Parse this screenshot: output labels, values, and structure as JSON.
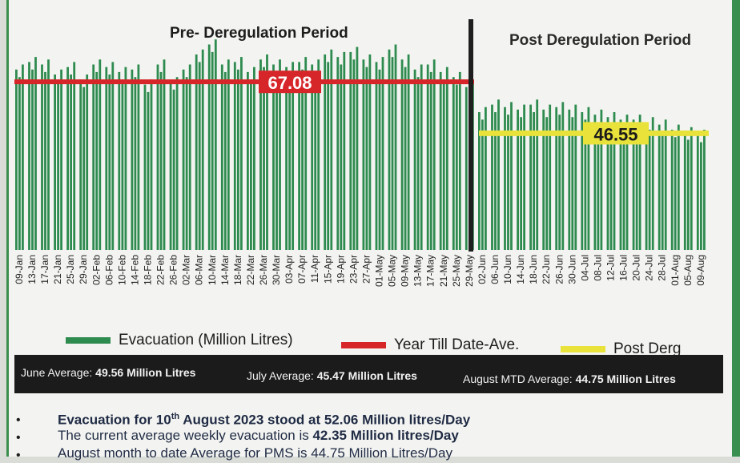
{
  "headings": {
    "pre": "Pre- Deregulation Period",
    "post": "Post Deregulation Period"
  },
  "chart_data": {
    "type": "bar",
    "categories": [
      "09-Jan",
      "13-Jan",
      "17-Jan",
      "21-Jan",
      "25-Jan",
      "29-Jan",
      "02-Feb",
      "06-Feb",
      "10-Feb",
      "14-Feb",
      "18-Feb",
      "22-Feb",
      "26-Feb",
      "02-Mar",
      "06-Mar",
      "10-Mar",
      "14-Mar",
      "18-Mar",
      "22-Mar",
      "26-Mar",
      "30-Mar",
      "03-Apr",
      "07-Apr",
      "11-Apr",
      "15-Apr",
      "19-Apr",
      "23-Apr",
      "27-Apr",
      "01-May",
      "05-May",
      "09-May",
      "13-May",
      "17-May",
      "21-May",
      "25-May",
      "29-May",
      "02-Jun",
      "06-Jun",
      "10-Jun",
      "14-Jun",
      "18-Jun",
      "22-Jun",
      "26-Jun",
      "30-Jun",
      "04-Jul",
      "08-Jul",
      "12-Jul",
      "16-Jul",
      "20-Jul",
      "24-Jul",
      "28-Jul",
      "01-Aug",
      "05-Aug",
      "09-Aug"
    ],
    "series": [
      {
        "name": "Evacuation (Million Litres)",
        "values": [
          72,
          75,
          74,
          70,
          73,
          68,
          74,
          73,
          71,
          72,
          66,
          74,
          67,
          72,
          78,
          82,
          74,
          75,
          71,
          76,
          74,
          73,
          75,
          74,
          78,
          77,
          79,
          76,
          75,
          80,
          76,
          72,
          74,
          71,
          69,
          65,
          55,
          58,
          57,
          56,
          58,
          56,
          57,
          56,
          55,
          54,
          53,
          52,
          52,
          51,
          50,
          48,
          47,
          46
        ]
      },
      {
        "name": "Year Till Date-Ave.",
        "value": 67.08,
        "label": "67.08"
      },
      {
        "name": "Post Derg",
        "value": 46.55,
        "label": "46.55"
      }
    ],
    "colors": {
      "bars": "#2e8b4f",
      "ytd": "#d7262a",
      "post": "#e8e23a"
    },
    "ylim": [
      0,
      100
    ],
    "legend": "bottom"
  },
  "legend": {
    "evac": "Evacuation (Million Litres)",
    "ytd": "Year Till Date-Ave.",
    "post": "Post Derg"
  },
  "averages": {
    "june_label": "June Average: ",
    "june_value": "49.56 Million Litres",
    "july_label": "July Average: ",
    "july_value": "45.47 Million Litres",
    "aug_label": "August MTD Average: ",
    "aug_value": "44.75 Million Litres"
  },
  "notes": {
    "line1_a": "Evacuation for 10",
    "line1_sup": "th",
    "line1_b": " August 2023 stood at 52.06 Million litres/Day",
    "line2_a": "The current average weekly evacuation is ",
    "line2_b": "42.35 Million litres/Day",
    "line3": "August month to date Average for PMS is 44.75 Million Litres/Day",
    "bullet": "•"
  }
}
